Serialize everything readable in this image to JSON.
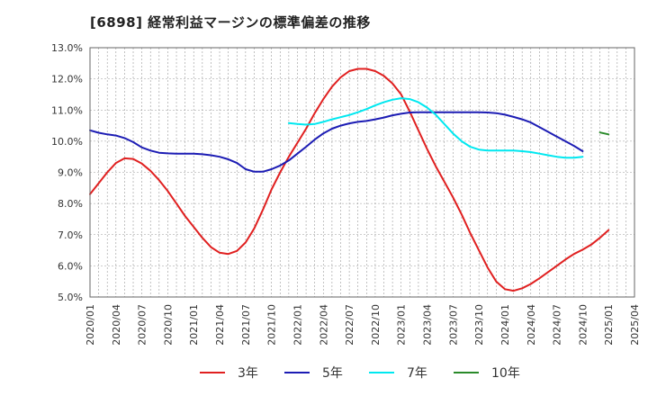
{
  "chart_data": {
    "type": "line",
    "title": "[6898]  経常利益マージンの標準偏差の推移",
    "y_ticks": [
      "13.0%",
      "12.0%",
      "11.0%",
      "10.0%",
      "9.0%",
      "8.0%",
      "7.0%",
      "6.0%",
      "5.0%"
    ],
    "x_ticks": [
      "2020/01",
      "2020/04",
      "2020/07",
      "2020/10",
      "2021/01",
      "2021/04",
      "2021/07",
      "2021/10",
      "2022/01",
      "2022/04",
      "2022/07",
      "2022/10",
      "2023/01",
      "2023/04",
      "2023/07",
      "2023/10",
      "2024/01",
      "2024/04",
      "2024/07",
      "2024/10",
      "2025/01",
      "2025/04"
    ],
    "ylim": [
      5.0,
      13.0
    ],
    "x_start": "2020/01",
    "x_end": "2025/04",
    "grid": true,
    "legend_position": "bottom",
    "series": [
      {
        "name": "3年",
        "color": "#e02020",
        "start": "2020/01",
        "values": [
          8.3,
          8.65,
          9.0,
          9.3,
          9.45,
          9.43,
          9.28,
          9.05,
          8.75,
          8.4,
          8.0,
          7.6,
          7.25,
          6.9,
          6.6,
          6.42,
          6.38,
          6.48,
          6.75,
          7.2,
          7.8,
          8.45,
          9.0,
          9.5,
          9.95,
          10.4,
          10.9,
          11.35,
          11.75,
          12.05,
          12.25,
          12.32,
          12.32,
          12.25,
          12.1,
          11.85,
          11.5,
          10.95,
          10.35,
          9.75,
          9.2,
          8.7,
          8.2,
          7.65,
          7.05,
          6.5,
          5.95,
          5.5,
          5.25,
          5.2,
          5.28,
          5.42,
          5.6,
          5.8,
          6.0,
          6.2,
          6.38,
          6.52,
          6.68,
          6.9,
          7.15
        ]
      },
      {
        "name": "5年",
        "color": "#1c1cb4",
        "start": "2020/01",
        "values": [
          10.35,
          10.27,
          10.22,
          10.18,
          10.1,
          9.97,
          9.8,
          9.7,
          9.63,
          9.61,
          9.6,
          9.6,
          9.6,
          9.58,
          9.55,
          9.5,
          9.42,
          9.3,
          9.1,
          9.02,
          9.02,
          9.1,
          9.22,
          9.38,
          9.6,
          9.82,
          10.05,
          10.25,
          10.4,
          10.5,
          10.57,
          10.62,
          10.65,
          10.7,
          10.76,
          10.83,
          10.88,
          10.92,
          10.93,
          10.93,
          10.93,
          10.93,
          10.93,
          10.93,
          10.93,
          10.93,
          10.92,
          10.9,
          10.85,
          10.78,
          10.7,
          10.6,
          10.45,
          10.3,
          10.15,
          10.0,
          9.85,
          9.68
        ]
      },
      {
        "name": "7年",
        "color": "#00e8f0",
        "start": "2021/12",
        "values": [
          10.58,
          10.55,
          10.53,
          10.55,
          10.62,
          10.7,
          10.77,
          10.84,
          10.93,
          11.03,
          11.15,
          11.25,
          11.33,
          11.38,
          11.35,
          11.25,
          11.08,
          10.85,
          10.55,
          10.25,
          10.0,
          9.82,
          9.73,
          9.7,
          9.7,
          9.7,
          9.7,
          9.68,
          9.65,
          9.6,
          9.55,
          9.5,
          9.47,
          9.47,
          9.5
        ]
      },
      {
        "name": "10年",
        "color": "#2a8a2a",
        "start": "2024/12",
        "values": [
          10.28,
          10.22
        ]
      }
    ]
  }
}
